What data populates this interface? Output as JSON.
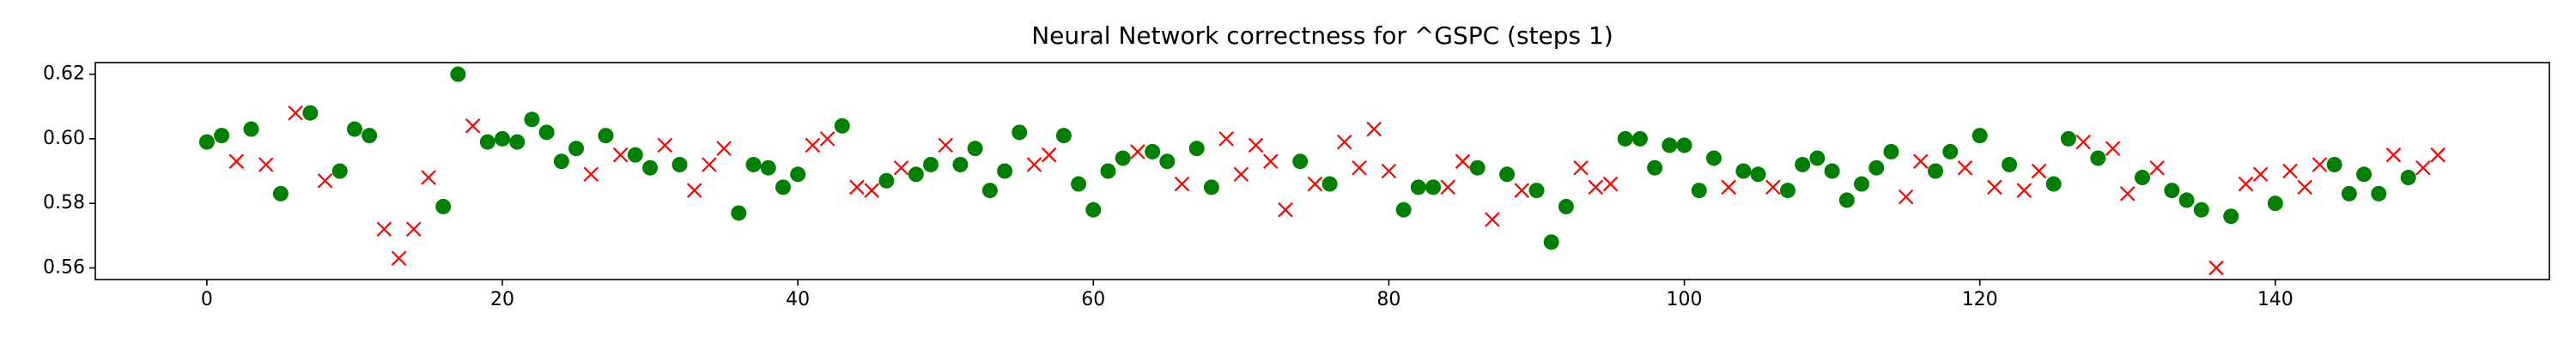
{
  "chart_data": {
    "type": "scatter",
    "title": "Neural Network correctness for ^GSPC (steps 1)",
    "xlim": [
      -7.55,
      158.55
    ],
    "ylim": [
      0.5564,
      0.6236
    ],
    "xticks": [
      0,
      20,
      40,
      60,
      80,
      100,
      120,
      140
    ],
    "yticks": [
      0.56,
      0.58,
      {
        "value": 0.6,
        "label": "0.60"
      },
      0.62
    ],
    "grid": false,
    "series": [
      {
        "color": "#008000",
        "marker": "circle",
        "x": [
          0,
          1,
          3,
          5,
          7,
          9,
          10,
          11,
          16,
          17,
          19,
          20,
          21,
          22,
          23,
          24,
          25,
          27,
          29,
          30,
          32,
          36,
          37,
          38,
          39,
          40,
          43,
          46,
          48,
          49,
          51,
          52,
          53,
          54,
          55,
          58,
          59,
          60,
          61,
          62,
          64,
          65,
          67,
          68,
          74,
          76,
          81,
          82,
          83,
          86,
          88,
          90,
          91,
          92,
          96,
          97,
          98,
          99,
          100,
          101,
          102,
          104,
          105,
          107,
          108,
          109,
          110,
          111,
          112,
          113,
          114,
          117,
          118,
          120,
          122,
          125,
          126,
          128,
          131,
          133,
          134,
          135,
          137,
          140,
          144,
          145,
          146,
          147,
          149
        ],
        "values": [
          0.599,
          0.601,
          0.603,
          0.583,
          0.608,
          0.59,
          0.603,
          0.601,
          0.579,
          0.62,
          0.599,
          0.6,
          0.599,
          0.606,
          0.602,
          0.593,
          0.597,
          0.601,
          0.595,
          0.591,
          0.592,
          0.577,
          0.592,
          0.591,
          0.585,
          0.589,
          0.604,
          0.587,
          0.589,
          0.592,
          0.592,
          0.597,
          0.584,
          0.59,
          0.602,
          0.601,
          0.586,
          0.578,
          0.59,
          0.594,
          0.596,
          0.593,
          0.597,
          0.585,
          0.593,
          0.586,
          0.578,
          0.585,
          0.585,
          0.591,
          0.589,
          0.584,
          0.568,
          0.579,
          0.6,
          0.6,
          0.591,
          0.598,
          0.598,
          0.584,
          0.594,
          0.59,
          0.589,
          0.584,
          0.592,
          0.594,
          0.59,
          0.581,
          0.586,
          0.591,
          0.596,
          0.59,
          0.596,
          0.601,
          0.592,
          0.586,
          0.6,
          0.594,
          0.588,
          0.584,
          0.581,
          0.578,
          0.576,
          0.58,
          0.592,
          0.583,
          0.589,
          0.583,
          0.588
        ]
      },
      {
        "color": "#ff0000",
        "marker": "x",
        "x": [
          2,
          4,
          6,
          8,
          12,
          13,
          14,
          15,
          18,
          26,
          28,
          31,
          33,
          34,
          35,
          41,
          42,
          44,
          45,
          47,
          50,
          56,
          57,
          63,
          66,
          69,
          70,
          71,
          72,
          73,
          75,
          77,
          78,
          79,
          80,
          84,
          85,
          87,
          89,
          93,
          94,
          95,
          103,
          106,
          115,
          116,
          119,
          121,
          123,
          124,
          127,
          129,
          130,
          132,
          136,
          138,
          139,
          141,
          142,
          143,
          148,
          150,
          151
        ],
        "values": [
          0.593,
          0.592,
          0.608,
          0.587,
          0.572,
          0.563,
          0.572,
          0.588,
          0.604,
          0.589,
          0.595,
          0.598,
          0.584,
          0.592,
          0.597,
          0.598,
          0.6,
          0.585,
          0.584,
          0.591,
          0.598,
          0.592,
          0.595,
          0.596,
          0.586,
          0.6,
          0.589,
          0.598,
          0.593,
          0.578,
          0.586,
          0.599,
          0.591,
          0.603,
          0.59,
          0.585,
          0.593,
          0.575,
          0.584,
          0.591,
          0.585,
          0.586,
          0.585,
          0.585,
          0.582,
          0.593,
          0.591,
          0.585,
          0.584,
          0.59,
          0.599,
          0.597,
          0.583,
          0.591,
          0.56,
          0.586,
          0.589,
          0.59,
          0.585,
          0.592,
          0.595,
          0.591,
          0.595
        ]
      }
    ]
  }
}
